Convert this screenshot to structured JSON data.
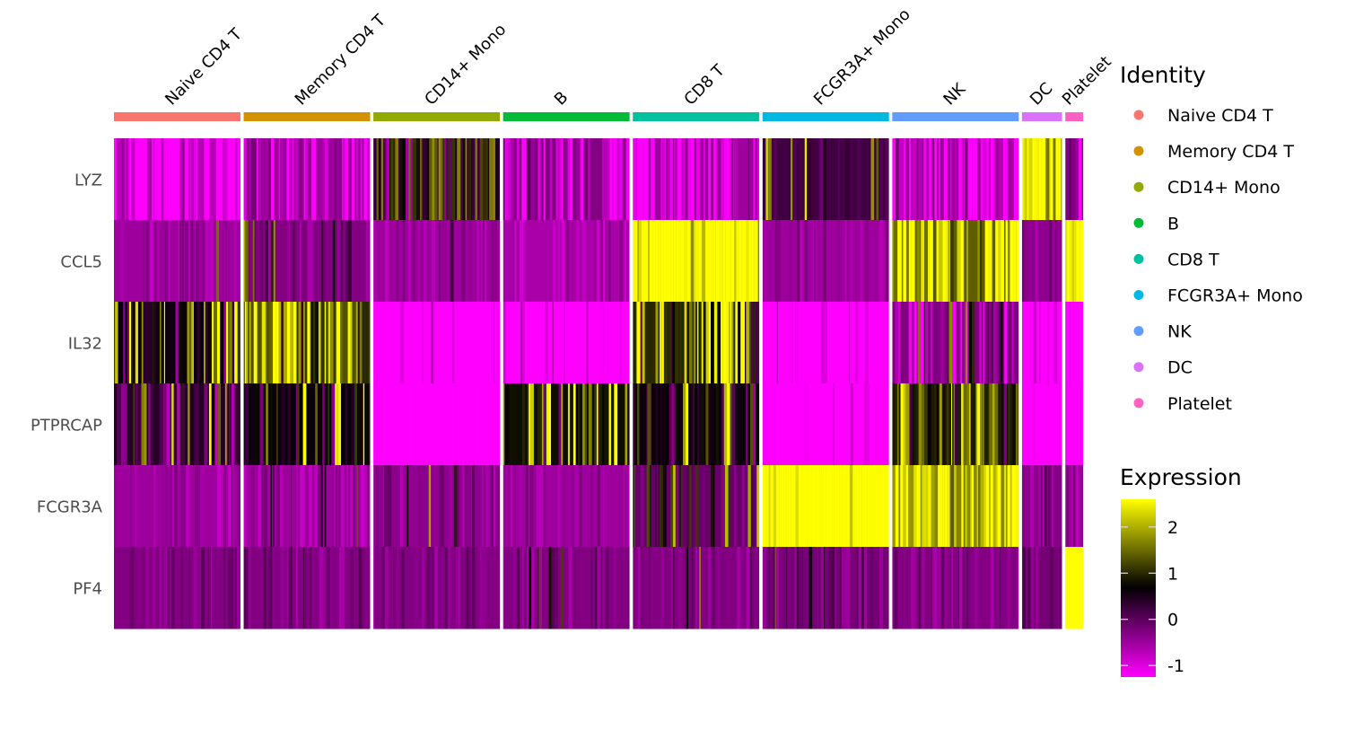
{
  "chart_data": {
    "type": "heatmap",
    "title": "",
    "genes": [
      "LYZ",
      "CCL5",
      "IL32",
      "PTPRCAP",
      "FCGR3A",
      "PF4"
    ],
    "groups": [
      {
        "name": "Naive CD4 T",
        "color": "#F8766D",
        "relative_cells": 142
      },
      {
        "name": "Memory CD4 T",
        "color": "#D39200",
        "relative_cells": 142
      },
      {
        "name": "CD14+ Mono",
        "color": "#93AA00",
        "relative_cells": 142
      },
      {
        "name": "B",
        "color": "#00BA38",
        "relative_cells": 142
      },
      {
        "name": "CD8 T",
        "color": "#00C19F",
        "relative_cells": 142
      },
      {
        "name": "FCGR3A+ Mono",
        "color": "#00B9E3",
        "relative_cells": 142
      },
      {
        "name": "NK",
        "color": "#619CFF",
        "relative_cells": 142
      },
      {
        "name": "DC",
        "color": "#DB72FB",
        "relative_cells": 45
      },
      {
        "name": "Platelet",
        "color": "#FF61C3",
        "relative_cells": 20
      }
    ],
    "mean_expression": [
      [
        -0.7,
        -0.5,
        -0.5,
        -0.3,
        -0.5,
        0.2,
        -0.5,
        1.6,
        -0.3
      ],
      [
        -0.5,
        -0.3,
        -0.5,
        -0.6,
        1.9,
        -0.5,
        1.4,
        -0.4,
        1.8
      ],
      [
        0.6,
        1.3,
        -1.0,
        -1.0,
        1.0,
        -1.0,
        -0.3,
        -0.9,
        -1.0
      ],
      [
        0.4,
        0.6,
        -1.2,
        0.8,
        0.6,
        -1.2,
        0.9,
        -1.1,
        -1.1
      ],
      [
        -0.5,
        -0.5,
        -0.4,
        -0.5,
        -0.1,
        2.3,
        1.7,
        -0.4,
        -0.5
      ],
      [
        -0.3,
        -0.3,
        -0.3,
        -0.3,
        -0.3,
        -0.2,
        -0.3,
        -0.2,
        2.6
      ]
    ],
    "high_cell_fraction": [
      [
        0.0,
        0.0,
        0.9,
        0.0,
        0.0,
        0.1,
        0.0,
        0.85,
        0.0
      ],
      [
        0.04,
        0.1,
        0.02,
        0.0,
        0.9,
        0.0,
        0.65,
        0.0,
        0.9
      ],
      [
        0.3,
        0.55,
        0.0,
        0.0,
        0.5,
        0.0,
        0.15,
        0.0,
        0.0
      ],
      [
        0.15,
        0.2,
        0.0,
        0.3,
        0.2,
        0.0,
        0.35,
        0.0,
        0.0
      ],
      [
        0.02,
        0.03,
        0.07,
        0.0,
        0.25,
        0.9,
        0.7,
        0.05,
        0.05
      ],
      [
        0.0,
        0.0,
        0.01,
        0.02,
        0.02,
        0.03,
        0.0,
        0.05,
        1.0
      ]
    ],
    "low_cell_fraction": [
      [
        0.55,
        0.45,
        0.0,
        0.6,
        0.5,
        0.0,
        0.5,
        0.0,
        0.4
      ],
      [
        0.0,
        0.0,
        0.0,
        0.0,
        0.0,
        0.0,
        0.0,
        0.0,
        0.0
      ],
      [
        0.15,
        0.05,
        0.9,
        0.85,
        0.1,
        0.85,
        0.3,
        0.8,
        0.9
      ],
      [
        0.2,
        0.1,
        0.9,
        0.05,
        0.1,
        0.9,
        0.05,
        0.85,
        0.9
      ],
      [
        0.0,
        0.0,
        0.0,
        0.0,
        0.0,
        0.0,
        0.0,
        0.0,
        0.0
      ],
      [
        0.0,
        0.0,
        0.0,
        0.0,
        0.0,
        0.0,
        0.0,
        0.0,
        0.0
      ]
    ],
    "color_scale": {
      "low": "#FF00FF",
      "mid": "#000000",
      "high": "#FFFF00",
      "range": [
        -1.25,
        2.6
      ],
      "midpoint": 0.7
    },
    "legends": {
      "identity_title": "Identity",
      "expression_title": "Expression",
      "expression_ticks": [
        2,
        1,
        0,
        -1
      ],
      "placement": "right"
    }
  }
}
